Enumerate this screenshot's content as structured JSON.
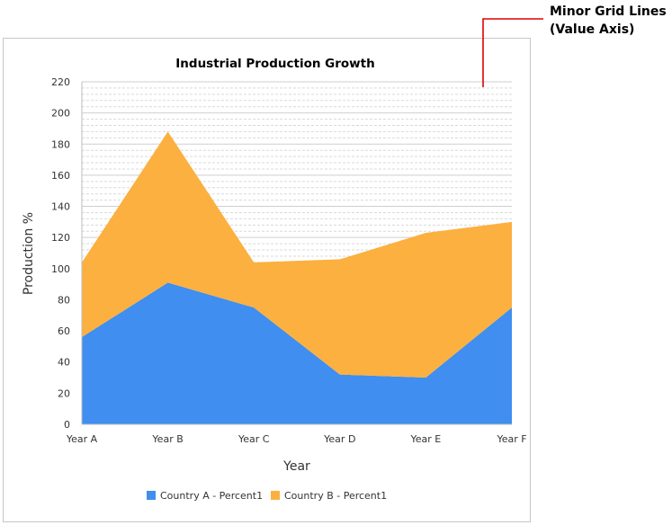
{
  "annotation": {
    "line1": "Minor Grid Lines",
    "line2": "(Value Axis)",
    "color": "#e00000"
  },
  "chart_data": {
    "type": "area",
    "stacked": true,
    "title": "Industrial Production Growth",
    "xlabel": "Year",
    "ylabel": "Production %",
    "categories": [
      "Year A",
      "Year B",
      "Year C",
      "Year D",
      "Year E",
      "Year F"
    ],
    "ylim": [
      0,
      220
    ],
    "y_ticks": [
      0,
      20,
      40,
      60,
      80,
      100,
      120,
      140,
      160,
      180,
      200,
      220
    ],
    "minor_grid": true,
    "legend_position": "bottom",
    "series": [
      {
        "name": "Country A - Percent1",
        "color": "#3f8ef0",
        "values": [
          56,
          91,
          75,
          32,
          30,
          75
        ]
      },
      {
        "name": "Country B - Percent1",
        "color": "#fbb040",
        "values": [
          48,
          97,
          29,
          74,
          93,
          55
        ]
      }
    ]
  }
}
